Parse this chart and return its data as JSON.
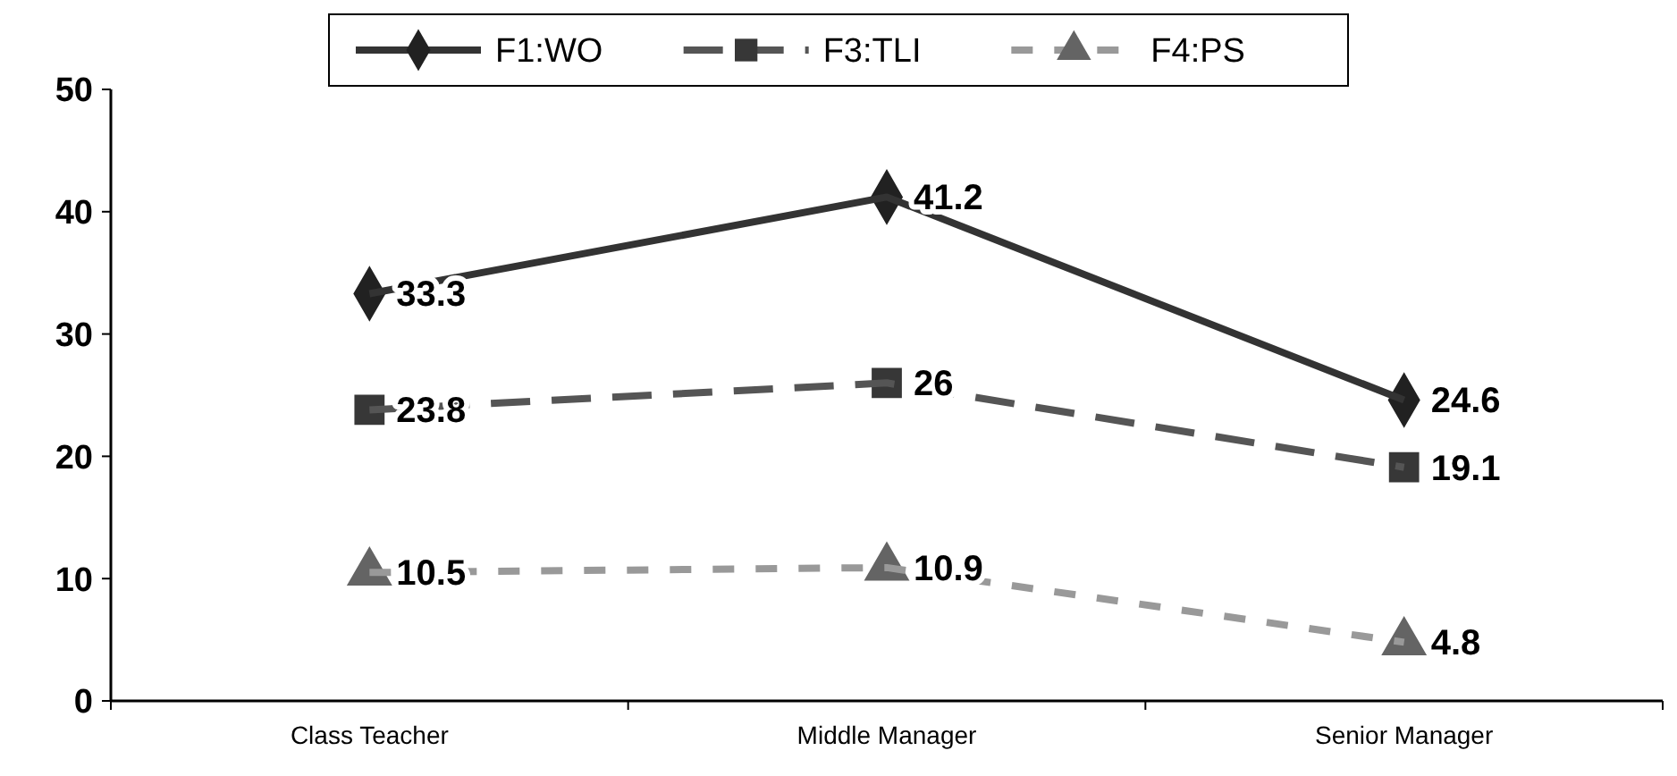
{
  "chart_data": {
    "type": "line",
    "categories": [
      "Class Teacher",
      "Middle Manager",
      "Senior Manager"
    ],
    "series": [
      {
        "name": "F1:WO",
        "color": "#333333",
        "values": [
          33.3,
          41.2,
          24.6
        ],
        "marker": "diamond",
        "line_style": "solid"
      },
      {
        "name": "F3:TLI",
        "color": "#555555",
        "values": [
          23.8,
          26,
          19.1
        ],
        "marker": "square",
        "line_style": "dashed"
      },
      {
        "name": "F4:PS",
        "color": "#999999",
        "values": [
          10.5,
          10.9,
          4.8
        ],
        "marker": "triangle",
        "line_style": "dashed"
      }
    ],
    "ylim": [
      0,
      50
    ],
    "yticks": [
      0,
      10,
      20,
      30,
      40,
      50
    ],
    "data_labels": true,
    "legend": "top",
    "grid": false
  }
}
